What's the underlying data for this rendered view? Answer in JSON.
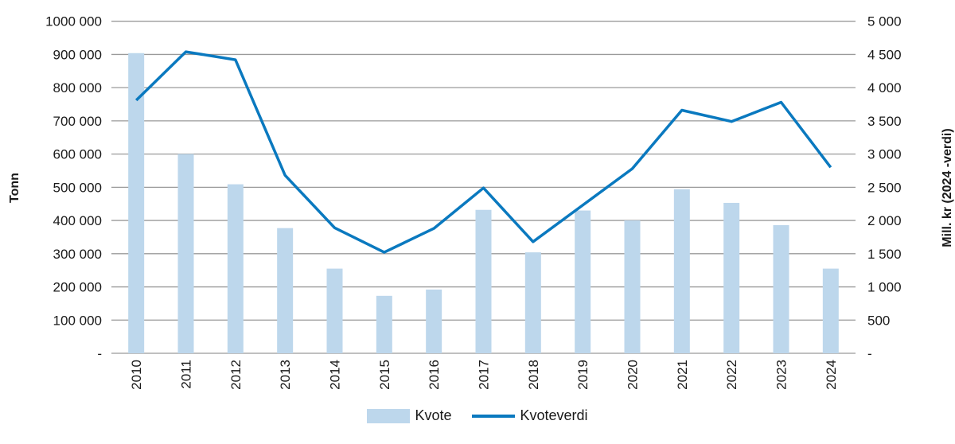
{
  "chart_data": {
    "type": "bar+line",
    "title": "",
    "categories": [
      "2010",
      "2011",
      "2012",
      "2013",
      "2014",
      "2015",
      "2016",
      "2017",
      "2018",
      "2019",
      "2020",
      "2021",
      "2022",
      "2023",
      "2024"
    ],
    "series": [
      {
        "name": "Kvote",
        "type": "bar",
        "axis": "left",
        "color": "#bdd7ec",
        "values": [
          904000,
          600000,
          509000,
          377000,
          255000,
          173000,
          192000,
          432000,
          304000,
          430000,
          400000,
          494000,
          453000,
          386000,
          255000
        ]
      },
      {
        "name": "Kvoteverdi",
        "type": "line",
        "axis": "right",
        "color": "#0a79bf",
        "values": [
          3810,
          4540,
          4420,
          2680,
          1890,
          1520,
          1880,
          2490,
          1680,
          2230,
          2780,
          3660,
          3490,
          3780,
          2800
        ]
      }
    ],
    "ylabel": "Tonn",
    "ylabel_right": "Mill. kr (2024 -verdi)",
    "xlabel": "",
    "ylim": [
      0,
      1000000
    ],
    "ylim_right": [
      0,
      5000
    ],
    "yticks": [
      "-",
      "100 000",
      "200 000",
      "300 000",
      "400 000",
      "500 000",
      "600 000",
      "700 000",
      "800 000",
      "900 000",
      "1000 000"
    ],
    "yticks_right": [
      "-",
      "500",
      "1 000",
      "1 500",
      "2 000",
      "2 500",
      "3 000",
      "3 500",
      "4 000",
      "4 500",
      "5 000"
    ],
    "grid": true,
    "legend_position": "bottom"
  },
  "legend": {
    "bar_label": "Kvote",
    "line_label": "Kvoteverdi"
  }
}
